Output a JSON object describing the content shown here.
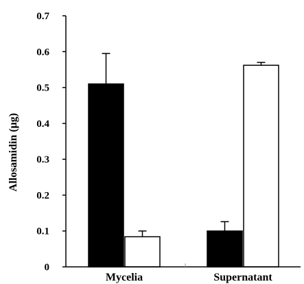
{
  "chart_data": {
    "type": "bar",
    "categories": [
      "Mycelia",
      "Supernatant"
    ],
    "series": [
      {
        "values": [
          0.51,
          0.1
        ],
        "errors": [
          0.085,
          0.026
        ],
        "color": "#000000"
      },
      {
        "values": [
          0.084,
          0.562
        ],
        "errors": [
          0.016,
          0.008
        ],
        "color": "#ffffff"
      }
    ],
    "ylabel": "Allosamidin (μg)",
    "xlabel": "",
    "ylim": [
      0,
      0.7
    ],
    "yticks": [
      "0",
      "0.1",
      "0.2",
      "0.3",
      "0.4",
      "0.5",
      "0.6",
      "0.7"
    ],
    "grid": false
  }
}
